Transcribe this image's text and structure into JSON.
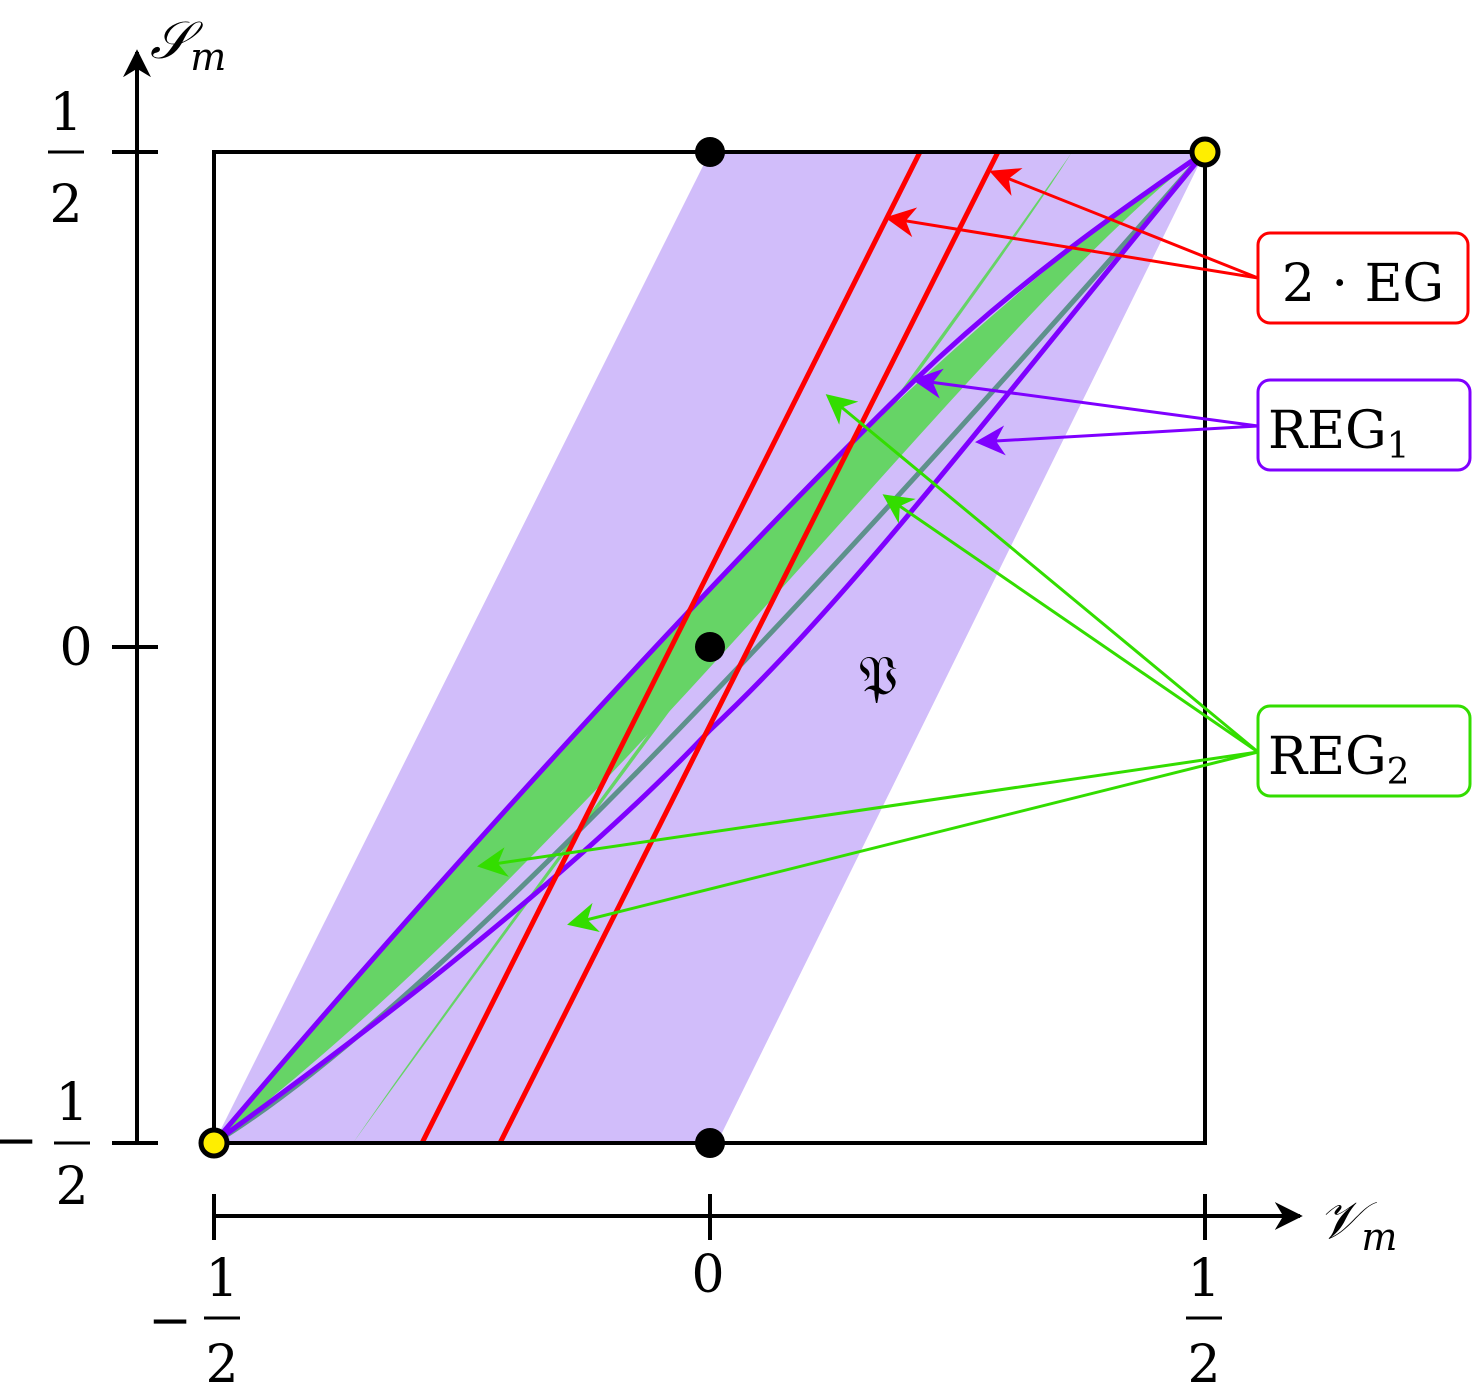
{
  "axes": {
    "x_label": {
      "main": "𝒱",
      "sub": "m"
    },
    "y_label": {
      "main": "𝒮",
      "sub": "m"
    },
    "x_ticks": [
      {
        "value": -0.5,
        "sign": "−",
        "num": "1",
        "den": "2"
      },
      {
        "value": 0,
        "text": "0"
      },
      {
        "value": 0.5,
        "sign": "",
        "num": "1",
        "den": "2"
      }
    ],
    "y_ticks": [
      {
        "value": 0.5,
        "sign": "",
        "num": "1",
        "den": "2"
      },
      {
        "value": 0,
        "text": "0"
      },
      {
        "value": -0.5,
        "sign": "−",
        "num": "1",
        "den": "2"
      }
    ]
  },
  "region_label": "𝔓",
  "callouts": {
    "eg": {
      "text": "2 · EG",
      "color": "#ff0000"
    },
    "reg1": {
      "text": "REG",
      "sub": "1",
      "color": "#7f00ff"
    },
    "reg2": {
      "text": "REG",
      "sub": "2",
      "color": "#33dd00"
    }
  },
  "colors": {
    "region_fill": "#d1bdfa",
    "green_fill": "#66d466",
    "red_line": "#ff0000",
    "purple_line": "#7f00ff",
    "corner_point": "#ffee00"
  }
}
